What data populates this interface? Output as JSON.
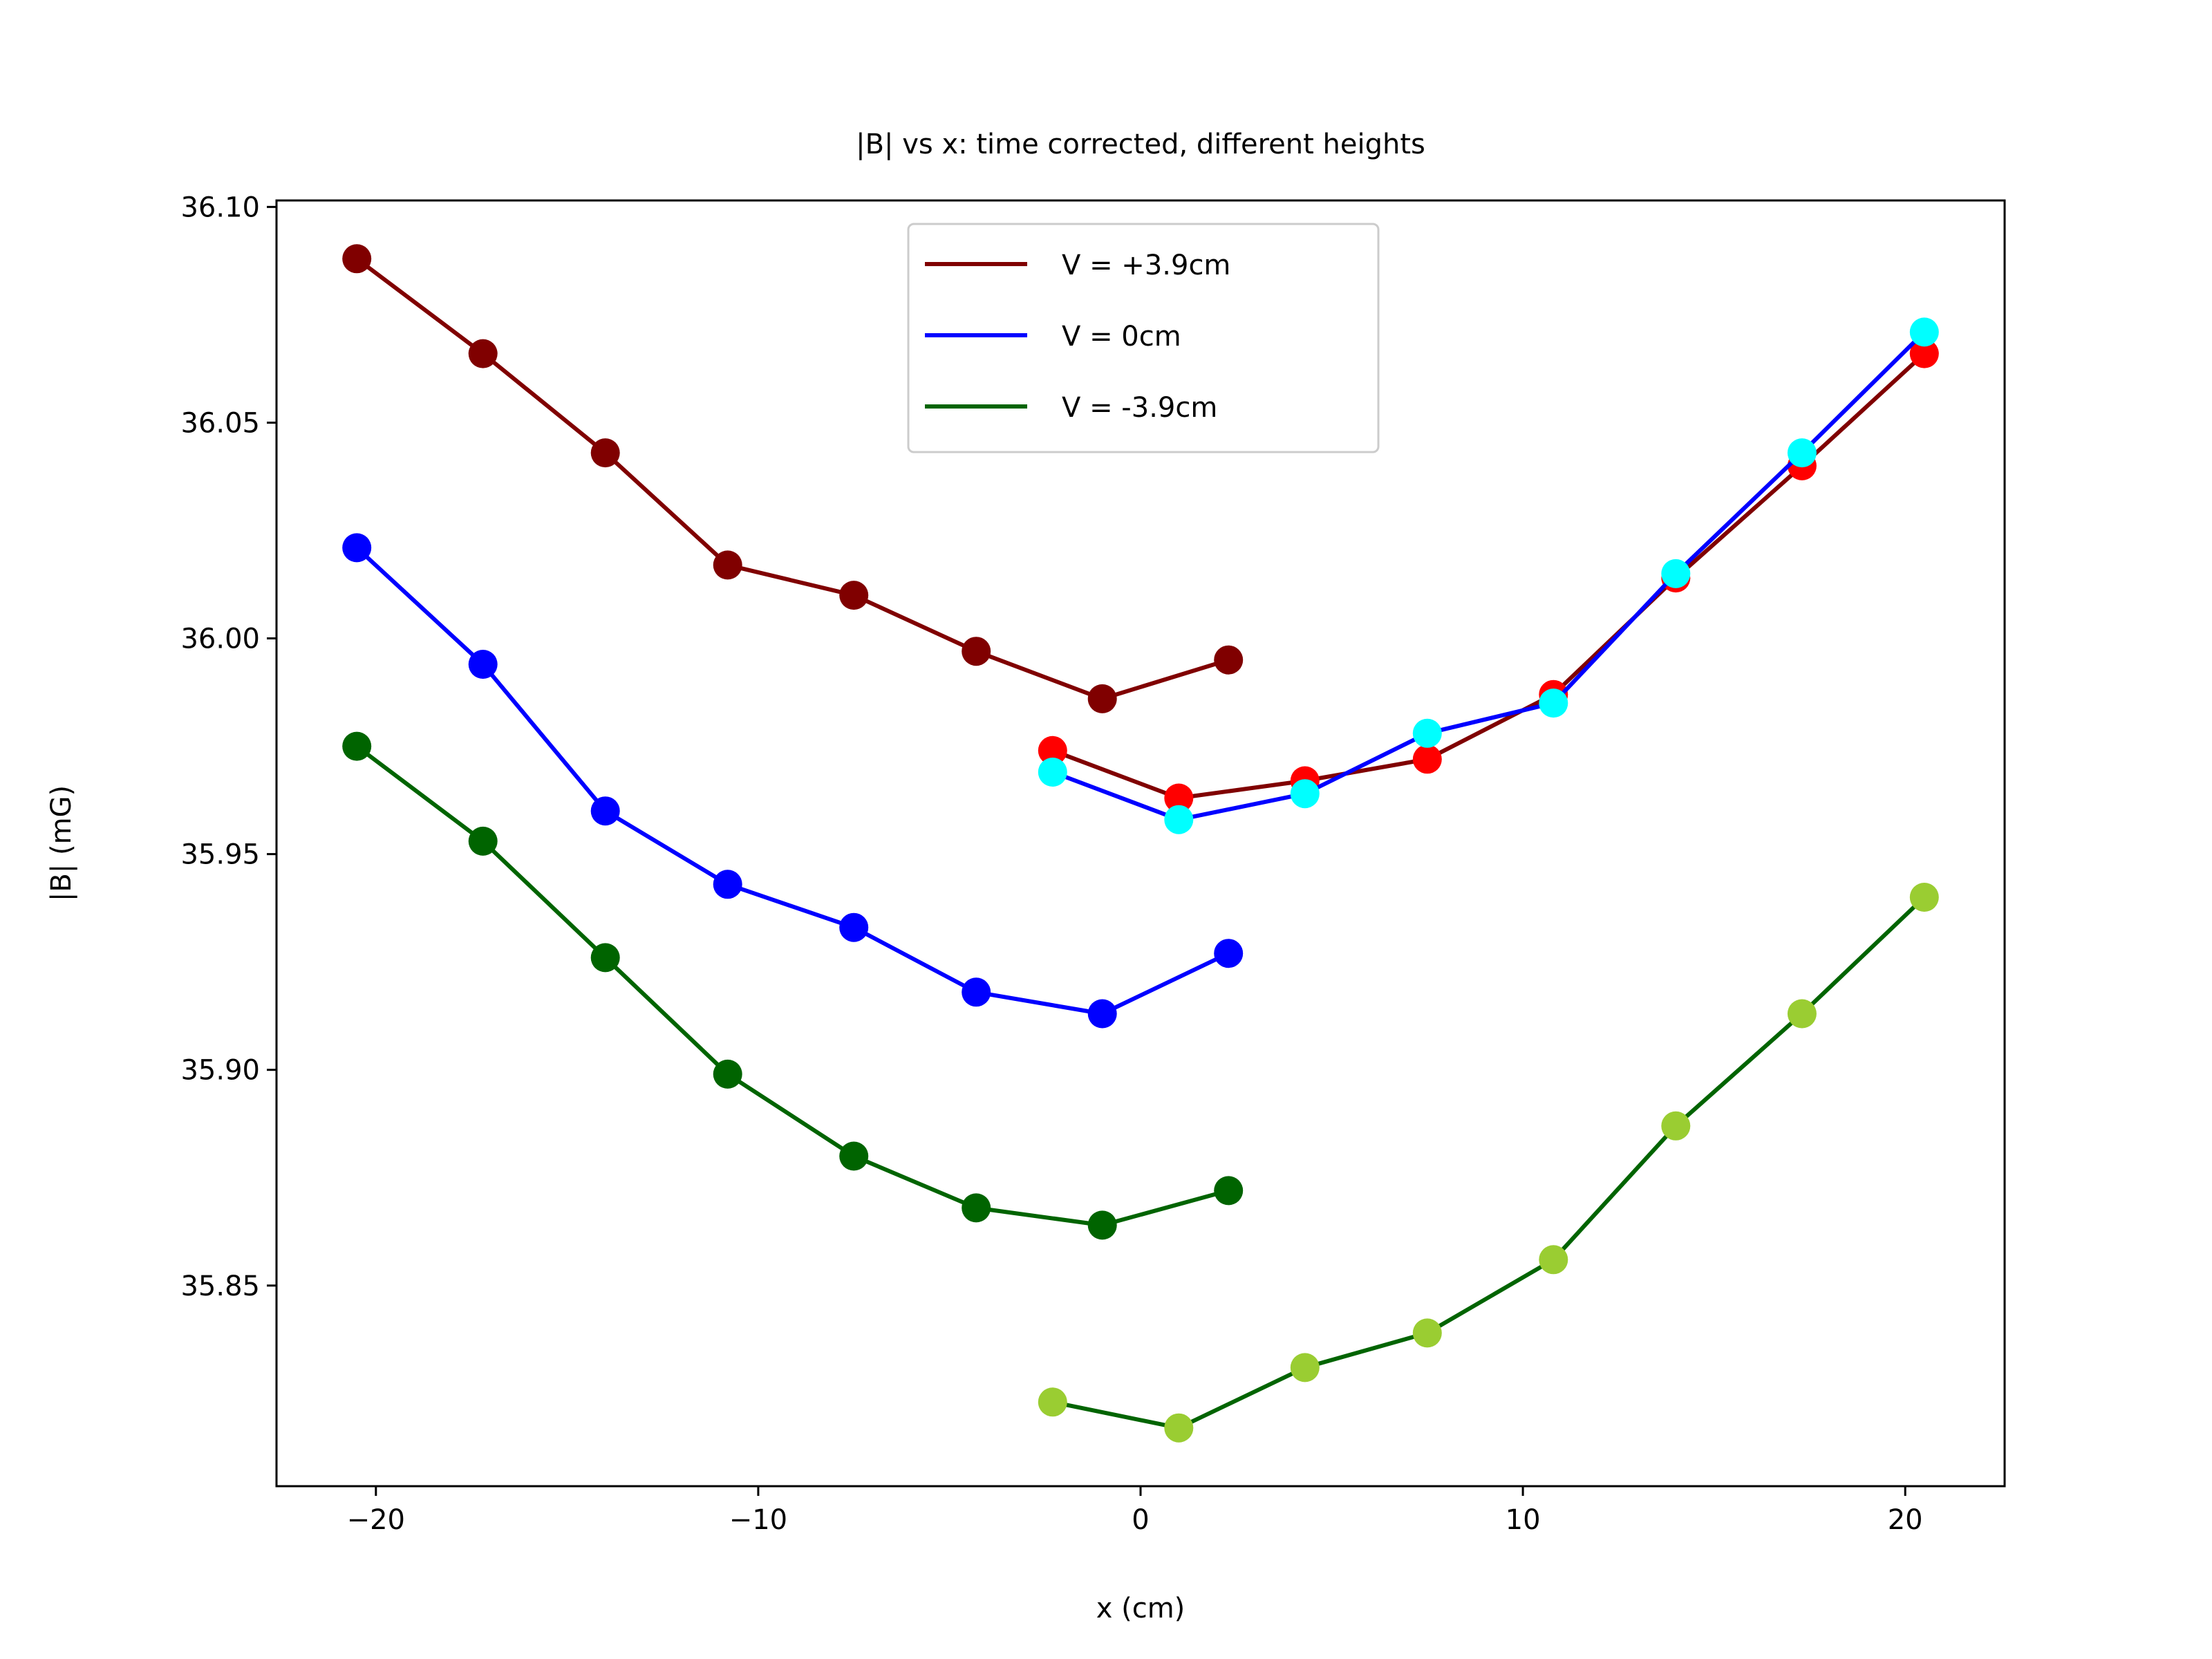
{
  "chart_data": {
    "type": "line",
    "title": "|B| vs x: time corrected, different heights",
    "xlabel": "x (cm)",
    "ylabel": "|B| (mG)",
    "xlim": [
      -22.6,
      22.6
    ],
    "ylim": [
      35.8035,
      36.1015
    ],
    "xticks": [
      -20,
      -10,
      0,
      10,
      20
    ],
    "xtick_labels": [
      "−20",
      "−10",
      "0",
      "10",
      "20"
    ],
    "yticks": [
      35.85,
      35.9,
      35.95,
      36.0,
      36.05,
      36.1
    ],
    "ytick_labels": [
      "35.85",
      "35.90",
      "35.95",
      "36.00",
      "36.05",
      "36.10"
    ],
    "grid": false,
    "legend_position": "top-center",
    "legend": [
      {
        "label": "V = +3.9cm",
        "color": "#800000"
      },
      {
        "label": "V = 0cm",
        "color": "#0000ff"
      },
      {
        "label": "V = -3.9cm",
        "color": "#006400"
      }
    ],
    "series": [
      {
        "line_color": "#800000",
        "marker_color": "#800000",
        "legend_index": 0,
        "x": [
          -20.5,
          -17.2,
          -14.0,
          -10.8,
          -7.5,
          -4.3,
          -1.0,
          2.3
        ],
        "y": [
          36.088,
          36.066,
          36.043,
          36.017,
          36.01,
          35.997,
          35.986,
          35.995
        ]
      },
      {
        "line_color": "#0000ff",
        "marker_color": "#0000ff",
        "legend_index": 1,
        "x": [
          -20.5,
          -17.2,
          -14.0,
          -10.8,
          -7.5,
          -4.3,
          -1.0,
          2.3
        ],
        "y": [
          36.021,
          35.994,
          35.96,
          35.943,
          35.933,
          35.918,
          35.913,
          35.927
        ]
      },
      {
        "line_color": "#006400",
        "marker_color": "#006400",
        "legend_index": 2,
        "x": [
          -20.5,
          -17.2,
          -14.0,
          -10.8,
          -7.5,
          -4.3,
          -1.0,
          2.3
        ],
        "y": [
          35.975,
          35.953,
          35.926,
          35.899,
          35.88,
          35.868,
          35.864,
          35.872
        ]
      },
      {
        "line_color": "#800000",
        "marker_color": "#ff0000",
        "x": [
          -2.3,
          1.0,
          4.3,
          7.5,
          10.8,
          14.0,
          17.3,
          20.5
        ],
        "y": [
          35.974,
          35.963,
          35.967,
          35.972,
          35.987,
          36.014,
          36.04,
          36.066
        ]
      },
      {
        "line_color": "#0000ff",
        "marker_color": "#00ffff",
        "x": [
          -2.3,
          1.0,
          4.3,
          7.5,
          10.8,
          14.0,
          17.3,
          20.5
        ],
        "y": [
          35.969,
          35.958,
          35.964,
          35.978,
          35.985,
          36.015,
          36.043,
          36.071
        ]
      },
      {
        "line_color": "#006400",
        "marker_color": "#9acd32",
        "x": [
          -2.3,
          1.0,
          4.3,
          7.5,
          10.8,
          14.0,
          17.3,
          20.5
        ],
        "y": [
          35.823,
          35.817,
          35.831,
          35.839,
          35.856,
          35.887,
          35.913,
          35.94
        ]
      }
    ]
  }
}
